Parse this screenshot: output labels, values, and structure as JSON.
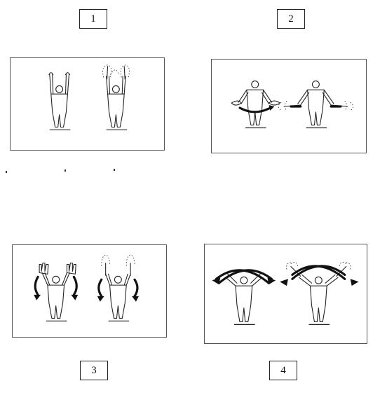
{
  "labels": {
    "one": "1",
    "two": "2",
    "three": "3",
    "four": "4"
  }
}
